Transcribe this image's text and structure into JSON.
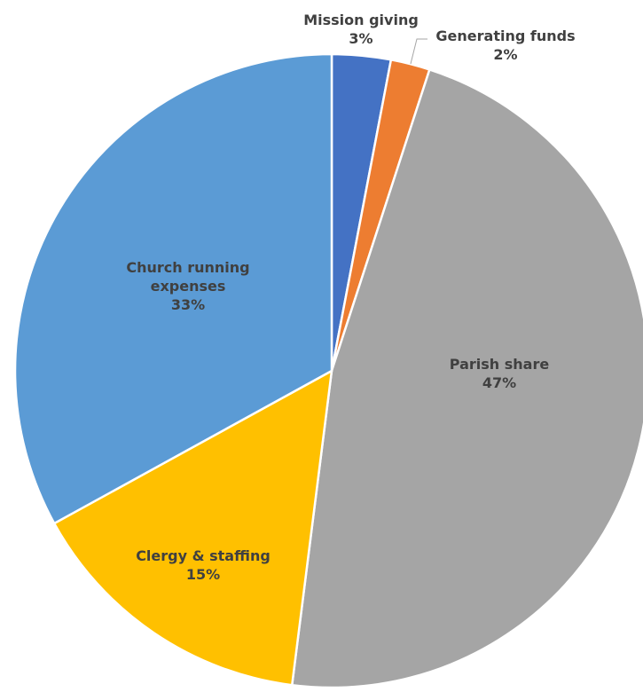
{
  "chart_data": {
    "type": "pie",
    "title": "",
    "slices": [
      {
        "label": "Mission giving",
        "value": 3,
        "value_label": "3%",
        "color": "#4472C4"
      },
      {
        "label": "Generating funds",
        "value": 2,
        "value_label": "2%",
        "color": "#ED7D31"
      },
      {
        "label": "Parish share",
        "value": 47,
        "value_label": "47%",
        "color": "#A5A5A5"
      },
      {
        "label": "Clergy & staffing",
        "value": 15,
        "value_label": "15%",
        "color": "#FFC000"
      },
      {
        "label": "Church running expenses",
        "value": 33,
        "value_label": "33%",
        "color": "#5B9BD5"
      }
    ],
    "start_angle": "12 o'clock",
    "direction": "clockwise",
    "legend": "none",
    "data_labels": "category name and percentage"
  }
}
